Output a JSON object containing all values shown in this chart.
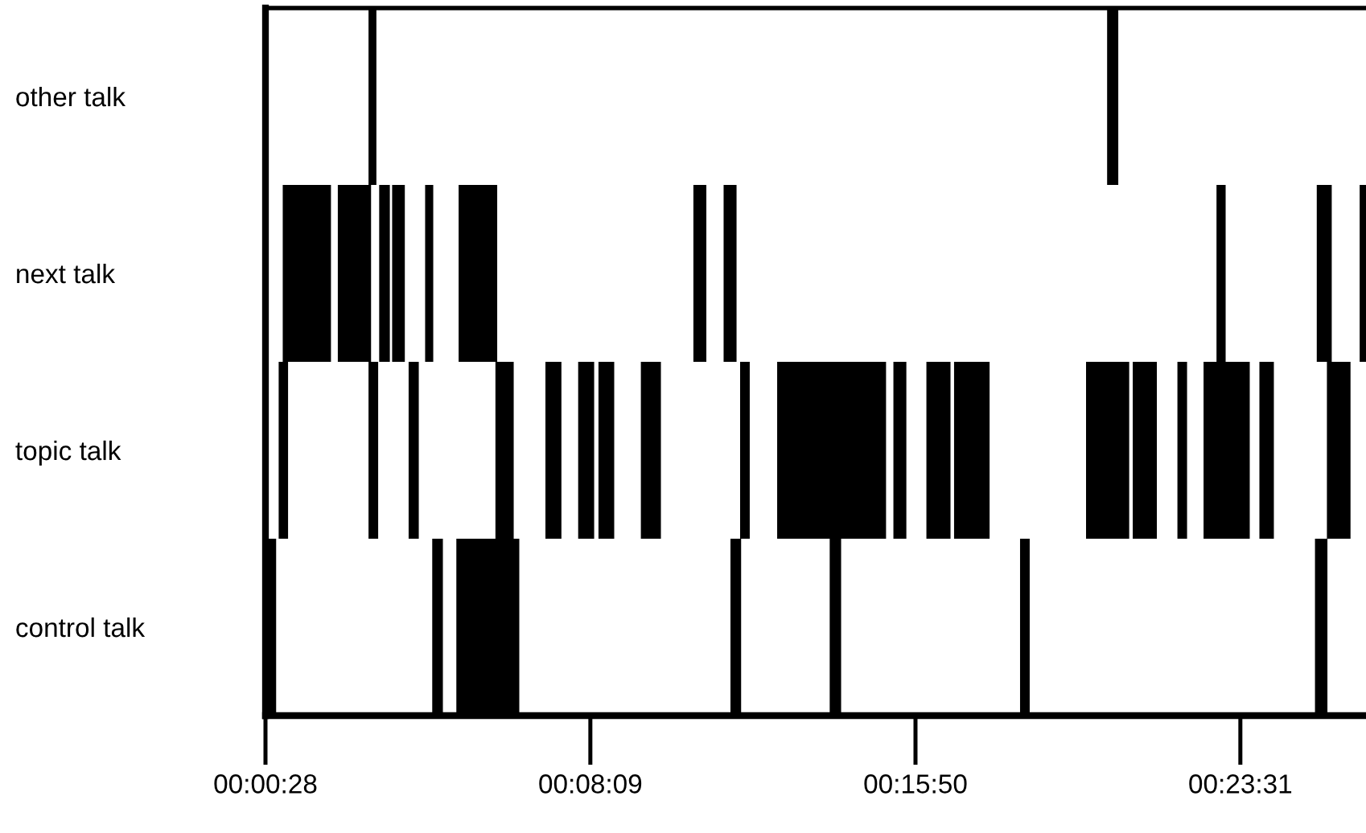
{
  "chart_data": {
    "type": "bar",
    "orientation": "horizontal",
    "categories": [
      "other talk",
      "next talk",
      "topic talk",
      "control talk"
    ],
    "xlim": [
      0.0078,
      0.4414
    ],
    "xticks": [
      {
        "value": 0.0078,
        "label": "00:00:28"
      },
      {
        "value": 0.1358,
        "label": "00:08:09"
      },
      {
        "value": 0.2639,
        "label": "00:15:50"
      },
      {
        "value": 0.3919,
        "label": "00:23:31"
      }
    ],
    "series": [
      {
        "color": "#000000",
        "base": [
          0.0484,
          0.0146,
          0.013,
          0.0084
        ],
        "values": [
          0.0031,
          0.019,
          0.0037,
          0.0036
        ]
      },
      {
        "color": "#000000",
        "base": [
          0.3394,
          0.0363,
          0.0484,
          0.0735
        ],
        "values": [
          0.0044,
          0.0131,
          0.0038,
          0.0042
        ]
      },
      {
        "color": "#000000",
        "base": [
          null,
          0.0526,
          0.0642,
          0.083
        ],
        "values": [
          null,
          0.0042,
          0.004,
          0.0248
        ]
      },
      {
        "color": "#000000",
        "base": [
          null,
          0.0577,
          0.0984,
          0.191
        ],
        "values": [
          null,
          0.005,
          0.0072,
          0.0042
        ]
      },
      {
        "color": "#000000",
        "base": [
          null,
          0.0707,
          0.1181,
          0.2301
        ],
        "values": [
          null,
          0.0032,
          0.0063,
          0.0045
        ]
      },
      {
        "color": "#000000",
        "base": [
          null,
          0.0839,
          0.131,
          0.3051
        ],
        "values": [
          null,
          0.0152,
          0.0063,
          0.0038
        ]
      },
      {
        "color": "#000000",
        "base": [
          null,
          0.1764,
          0.139,
          0.4213
        ],
        "values": [
          null,
          0.0051,
          0.0062,
          0.0049
        ]
      },
      {
        "color": "#000000",
        "base": [
          null,
          0.1883,
          0.1557,
          null
        ],
        "values": [
          null,
          0.0051,
          0.0079,
          null
        ]
      },
      {
        "color": "#000000",
        "base": [
          null,
          0.3825,
          0.1948,
          null
        ],
        "values": [
          null,
          0.0036,
          0.0038,
          null
        ]
      },
      {
        "color": "#000000",
        "base": [
          null,
          0.422,
          0.2094,
          null
        ],
        "values": [
          null,
          0.0059,
          0.0429,
          null
        ]
      },
      {
        "color": "#000000",
        "base": [
          null,
          0.4389,
          0.2552,
          null
        ],
        "values": [
          null,
          0.0025,
          0.0051,
          null
        ]
      },
      {
        "color": "#000000",
        "base": [
          null,
          null,
          0.2682,
          null
        ],
        "values": [
          null,
          null,
          0.0095,
          null
        ]
      },
      {
        "color": "#000000",
        "base": [
          null,
          null,
          0.2791,
          null
        ],
        "values": [
          null,
          null,
          0.014,
          null
        ]
      },
      {
        "color": "#000000",
        "base": [
          null,
          null,
          0.3311,
          null
        ],
        "values": [
          null,
          null,
          0.017,
          null
        ]
      },
      {
        "color": "#000000",
        "base": [
          null,
          null,
          0.3495,
          null
        ],
        "values": [
          null,
          null,
          0.0095,
          null
        ]
      },
      {
        "color": "#000000",
        "base": [
          null,
          null,
          0.3671,
          null
        ],
        "values": [
          null,
          null,
          0.0038,
          null
        ]
      },
      {
        "color": "#000000",
        "base": [
          null,
          null,
          0.3774,
          null
        ],
        "values": [
          null,
          null,
          0.0182,
          null
        ]
      },
      {
        "color": "#000000",
        "base": [
          null,
          null,
          0.3994,
          null
        ],
        "values": [
          null,
          null,
          0.0057,
          null
        ]
      },
      {
        "color": "#000000",
        "base": [
          null,
          null,
          0.426,
          null
        ],
        "values": [
          null,
          null,
          0.0093,
          null
        ]
      }
    ]
  }
}
